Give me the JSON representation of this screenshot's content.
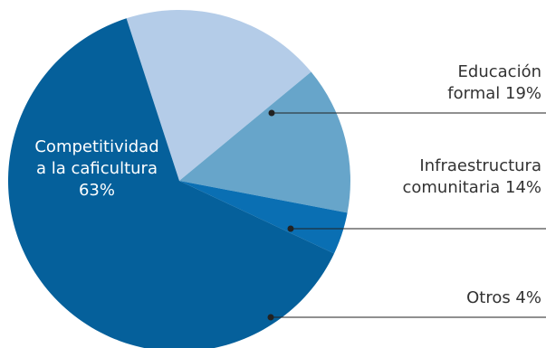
{
  "chart_data": {
    "type": "pie",
    "title": "",
    "slices": [
      {
        "label_lines": [
          "Educación",
          "formal 19%"
        ],
        "value": 19,
        "color": "#b4cce8"
      },
      {
        "label_lines": [
          "Infraestructura",
          "comunitaria 14%"
        ],
        "value": 14,
        "color": "#67a5ca"
      },
      {
        "label_lines": [
          "Otros 4%"
        ],
        "value": 4,
        "color": "#0a6fb3"
      },
      {
        "label_lines": [
          "Competitividad",
          "a la caficultura",
          "63%"
        ],
        "value": 63,
        "color": "#05609b"
      }
    ],
    "label_text_color": "#333333",
    "inner_label_color": "#ffffff",
    "leader_color": "#222222"
  }
}
